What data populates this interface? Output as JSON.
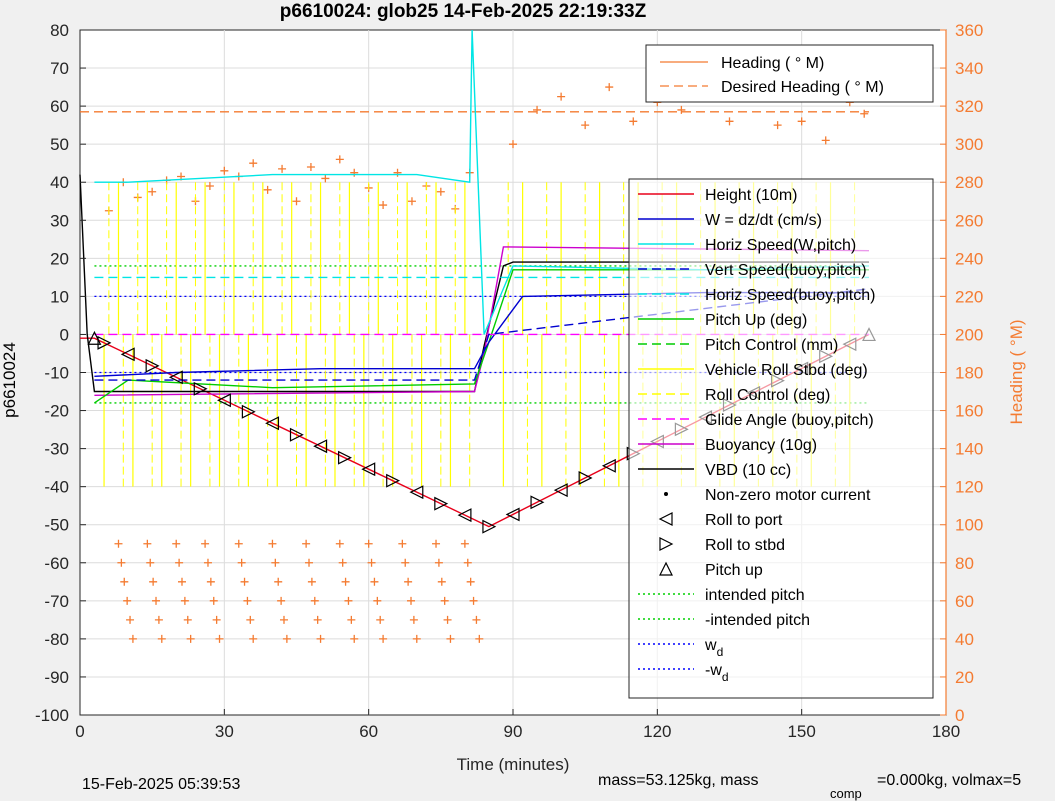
{
  "chart_data": {
    "type": "line",
    "title": "p6610024: glob25 14-Feb-2025 22:19:33Z",
    "xlabel": "Time (minutes)",
    "ylabel": "p6610024",
    "y2label": "Heading (  °M)",
    "xlim": [
      0,
      180
    ],
    "ylim": [
      -100,
      80
    ],
    "y2lim": [
      0,
      360
    ],
    "xticks": [
      "0",
      "30",
      "60",
      "90",
      "120",
      "150",
      "180"
    ],
    "yticks": [
      "80",
      "70",
      "60",
      "50",
      "40",
      "30",
      "20",
      "10",
      "0",
      "-10",
      "-20",
      "-30",
      "-40",
      "-50",
      "-60",
      "-70",
      "-80",
      "-90",
      "-100"
    ],
    "y2ticks": [
      "360",
      "340",
      "320",
      "300",
      "280",
      "260",
      "240",
      "220",
      "200",
      "180",
      "160",
      "140",
      "120",
      "100",
      "80",
      "60",
      "40",
      "20",
      "0"
    ],
    "grid": true,
    "footer_left": "15-Feb-2025 05:39:53",
    "footer_right": "mass=53.125kg, mass",
    "footer_sub": "comp",
    "footer_right2": "=0.000kg, volmax=5",
    "colors": {
      "heading": "#f47b31",
      "height": "#e8001a",
      "w": "#0000d0",
      "horiz_w": "#00e5e5",
      "pitch": "#00cc00",
      "roll": "#ffff00",
      "glide": "#ff00ff",
      "buoyancy": "#cc00cc",
      "vbd": "#000000",
      "intended_pitch": "#00d000",
      "wd": "#0000ff"
    },
    "legend_top": [
      {
        "label": "Heading (  ° M)",
        "style": "plus"
      },
      {
        "label": "Desired Heading (  ° M)",
        "style": "dashed"
      }
    ],
    "legend_main": [
      {
        "label": "Height (10m)",
        "style": "solid",
        "color_key": "height"
      },
      {
        "label": "W = dz/dt (cm/s)",
        "style": "solid",
        "color_key": "w"
      },
      {
        "label": "Horiz Speed(W,pitch)",
        "style": "solid",
        "color_key": "horiz_w"
      },
      {
        "label": "Vert Speed(buoy,pitch)",
        "style": "dashed",
        "color_key": "w"
      },
      {
        "label": "Horiz Speed(buoy,pitch)",
        "style": "dashed",
        "color_key": "horiz_w"
      },
      {
        "label": "Pitch Up (deg)",
        "style": "solid",
        "color_key": "pitch"
      },
      {
        "label": "Pitch Control (mm)",
        "style": "dashed",
        "color_key": "pitch"
      },
      {
        "label": "Vehicle Roll Stbd (deg)",
        "style": "solid",
        "color_key": "roll"
      },
      {
        "label": "Roll Control (deg)",
        "style": "dashed",
        "color_key": "roll"
      },
      {
        "label": "Glide Angle (buoy,pitch)",
        "style": "dashed",
        "color_key": "glide"
      },
      {
        "label": "Buoyancy (10g)",
        "style": "solid",
        "color_key": "buoyancy"
      },
      {
        "label": "VBD (10 cc)",
        "style": "solid",
        "color_key": "vbd"
      },
      {
        "label": "Non-zero motor current",
        "style": "dot",
        "color_key": "vbd"
      },
      {
        "label": "Roll to port",
        "style": "tri-left",
        "color_key": "vbd"
      },
      {
        "label": "Roll to stbd",
        "style": "tri-right",
        "color_key": "vbd"
      },
      {
        "label": "Pitch up",
        "style": "tri-up",
        "color_key": "vbd"
      },
      {
        "label": "intended pitch",
        "style": "dotted",
        "color_key": "intended_pitch"
      },
      {
        "label": "-intended pitch",
        "style": "dotted",
        "color_key": "intended_pitch"
      },
      {
        "label": "w",
        "sub": "d",
        "style": "dotted",
        "color_key": "wd"
      },
      {
        "label": "-w",
        "sub": "d",
        "style": "dotted",
        "color_key": "wd"
      }
    ],
    "series": [
      {
        "name": "Height (10m)",
        "key": "height",
        "x": [
          0,
          3,
          85,
          164
        ],
        "y": [
          -1,
          -1,
          -50.5,
          0
        ]
      },
      {
        "name": "VBD (10 cc)",
        "key": "vbd",
        "x": [
          0,
          1.5,
          3,
          82,
          84,
          88,
          90,
          164
        ],
        "y": [
          42,
          0,
          -15,
          -15,
          -3,
          18,
          19,
          19
        ]
      },
      {
        "name": "Buoyancy (10g)",
        "key": "buoyancy",
        "x": [
          3,
          82,
          84,
          88,
          164
        ],
        "y": [
          -16,
          -15,
          -5,
          23,
          22
        ]
      },
      {
        "name": "Pitch Up (deg)",
        "key": "pitch",
        "x": [
          3,
          10,
          40,
          82,
          85,
          90,
          164
        ],
        "y": [
          -18,
          -12,
          -14,
          -13,
          -2,
          17,
          17
        ]
      },
      {
        "name": "W = dz/dt (cm/s)",
        "key": "w",
        "x": [
          3,
          20,
          50,
          82,
          85,
          92,
          130,
          164
        ],
        "y": [
          -11,
          -10,
          -9,
          -9,
          -2,
          10,
          11,
          11
        ]
      },
      {
        "name": "Horiz Speed(W,pitch)",
        "key": "horiz_w",
        "x": [
          3,
          10,
          40,
          70,
          81,
          81.5,
          84,
          90,
          130,
          164
        ],
        "y": [
          40,
          40,
          42,
          42,
          40,
          80,
          0,
          18,
          17,
          18
        ]
      },
      {
        "name": "Glide Angle (buoy,pitch)",
        "key": "glide",
        "x": [
          3,
          82,
          84,
          164
        ],
        "y": [
          0,
          0,
          0,
          0
        ]
      },
      {
        "name": "Vert Speed(buoy,pitch)",
        "key": "w",
        "x": [
          3,
          82,
          85,
          164
        ],
        "y": [
          -12,
          -12,
          0,
          12
        ]
      },
      {
        "name": "Horiz Speed(buoy,pitch)",
        "key": "horiz_w",
        "x": [
          3,
          82,
          85,
          164
        ],
        "y": [
          15,
          15,
          15,
          15
        ]
      }
    ],
    "reference_lines": [
      {
        "name": "intended pitch",
        "key": "intended_pitch",
        "y": 18
      },
      {
        "name": "-intended pitch",
        "key": "intended_pitch",
        "y": -18
      },
      {
        "name": "w_d",
        "key": "wd",
        "y": 10
      },
      {
        "name": "-w_d",
        "key": "wd",
        "y": -10
      }
    ],
    "desired_heading": 317,
    "heading_samples": {
      "x": [
        6,
        9,
        12,
        15,
        18,
        21,
        24,
        27,
        30,
        33,
        36,
        39,
        42,
        45,
        48,
        51,
        54,
        57,
        60,
        63,
        66,
        69,
        72,
        75,
        78,
        81,
        90,
        95,
        100,
        105,
        110,
        115,
        120,
        125,
        130,
        135,
        140,
        145,
        150,
        155,
        160,
        163
      ],
      "y": [
        265,
        280,
        272,
        275,
        281,
        283,
        270,
        278,
        286,
        283,
        290,
        276,
        287,
        270,
        288,
        282,
        292,
        285,
        277,
        268,
        285,
        270,
        278,
        275,
        266,
        285,
        300,
        318,
        325,
        310,
        330,
        312,
        322,
        318,
        338,
        312,
        325,
        310,
        312,
        302,
        322,
        316
      ]
    },
    "heading_dive_spikes_x": [
      8,
      14,
      20,
      26,
      33,
      40,
      47,
      54,
      60,
      67,
      74,
      80
    ],
    "roll_spike_x": [
      5,
      8,
      11,
      14,
      17,
      20,
      23,
      26,
      29,
      32,
      35,
      38,
      41,
      44,
      47,
      50,
      53,
      56,
      59,
      62,
      65,
      68,
      71,
      74,
      77,
      80,
      88,
      92,
      96,
      100,
      104,
      108,
      112,
      116,
      120,
      124,
      128,
      132,
      136,
      140,
      144,
      148,
      152,
      156,
      160
    ],
    "pitch_up_x": [
      3,
      164
    ],
    "roll_port_x": [
      10,
      20,
      30,
      40,
      50,
      60,
      70,
      80,
      90,
      100,
      110,
      120,
      130,
      140,
      150,
      160
    ],
    "roll_stbd_x": [
      5,
      15,
      25,
      35,
      45,
      55,
      65,
      75,
      85,
      95,
      105,
      115,
      125,
      135,
      145,
      155
    ]
  }
}
